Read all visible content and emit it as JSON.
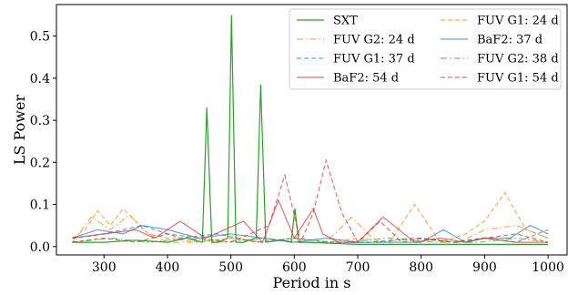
{
  "chart_data": {
    "type": "line",
    "title": "",
    "xlabel": "Period in s",
    "ylabel": "LS Power",
    "xlim": [
      225,
      1030
    ],
    "ylim": [
      -0.02,
      0.575
    ],
    "xticks": [
      300,
      400,
      500,
      600,
      700,
      800,
      900,
      1000
    ],
    "yticks": [
      0.0,
      0.1,
      0.2,
      0.3,
      0.4,
      0.5
    ],
    "ytick_labels": [
      "0.0",
      "0.1",
      "0.2",
      "0.3",
      "0.4",
      "0.5"
    ],
    "grid": false,
    "legend_position": "top-right",
    "legend_columns": 2,
    "series": [
      {
        "name": "SXT",
        "color": "#2ca02c",
        "style": "solid",
        "x": [
          250,
          300,
          350,
          400,
          430,
          455,
          462,
          470,
          480,
          495,
          501,
          508,
          520,
          540,
          547,
          555,
          580,
          595,
          601,
          607,
          620,
          700,
          800,
          900,
          1000
        ],
        "y": [
          0.01,
          0.01,
          0.015,
          0.01,
          0.02,
          0.01,
          0.33,
          0.01,
          0.01,
          0.02,
          0.55,
          0.01,
          0.01,
          0.02,
          0.385,
          0.01,
          0.015,
          0.01,
          0.09,
          0.01,
          0.01,
          0.005,
          0.005,
          0.005,
          0.005
        ]
      },
      {
        "name": "FUV G1: 24 d",
        "color": "#ff7f0e",
        "style": "dashed",
        "x": [
          250,
          270,
          290,
          310,
          330,
          350,
          370,
          400,
          450,
          500,
          550,
          600,
          650,
          700,
          750,
          790,
          830,
          870,
          900,
          932,
          965,
          1000
        ],
        "y": [
          0.02,
          0.04,
          0.085,
          0.05,
          0.09,
          0.06,
          0.03,
          0.02,
          0.01,
          0.02,
          0.01,
          0.02,
          0.01,
          0.02,
          0.01,
          0.1,
          0.01,
          0.03,
          0.06,
          0.128,
          0.04,
          0.02
        ]
      },
      {
        "name": "FUV G2: 24 d",
        "color": "#ff7f0e",
        "style": "dashdot",
        "x": [
          250,
          280,
          310,
          340,
          370,
          400,
          450,
          500,
          550,
          600,
          650,
          690,
          730,
          800,
          860,
          900,
          950,
          1000
        ],
        "y": [
          0.01,
          0.07,
          0.04,
          0.075,
          0.03,
          0.01,
          0.01,
          0.02,
          0.01,
          0.02,
          0.01,
          0.07,
          0.01,
          0.02,
          0.01,
          0.04,
          0.05,
          0.02
        ]
      },
      {
        "name": "BaF2: 37 d",
        "color": "#1f77b4",
        "style": "solid",
        "x": [
          250,
          290,
          330,
          360,
          400,
          450,
          500,
          550,
          600,
          650,
          700,
          750,
          800,
          835,
          870,
          900,
          940,
          972,
          1000
        ],
        "y": [
          0.02,
          0.04,
          0.03,
          0.05,
          0.04,
          0.02,
          0.03,
          0.02,
          0.01,
          0.02,
          0.01,
          0.01,
          0.01,
          0.04,
          0.01,
          0.02,
          0.02,
          0.05,
          0.03
        ]
      },
      {
        "name": "FUV G1: 37 d",
        "color": "#1f77b4",
        "style": "dashed",
        "x": [
          250,
          300,
          360,
          420,
          480,
          540,
          600,
          660,
          720,
          790,
          850,
          900,
          950,
          1000
        ],
        "y": [
          0.02,
          0.03,
          0.05,
          0.02,
          0.03,
          0.01,
          0.02,
          0.01,
          0.01,
          0.02,
          0.01,
          0.02,
          0.01,
          0.04
        ]
      },
      {
        "name": "FUV G2: 38 d",
        "color": "#2ca02c",
        "style": "dashdot",
        "x": [
          250,
          310,
          370,
          430,
          490,
          550,
          610,
          680,
          750,
          820,
          890,
          950,
          1000
        ],
        "y": [
          0.01,
          0.02,
          0.01,
          0.02,
          0.01,
          0.02,
          0.01,
          0.01,
          0.02,
          0.01,
          0.01,
          0.02,
          0.01
        ]
      },
      {
        "name": "BaF2: 54 d",
        "color": "#d62728",
        "style": "solid",
        "x": [
          250,
          300,
          350,
          380,
          420,
          460,
          490,
          520,
          550,
          575,
          600,
          630,
          645,
          670,
          700,
          740,
          790,
          830,
          870,
          900,
          950,
          1000
        ],
        "y": [
          0.02,
          0.03,
          0.04,
          0.02,
          0.06,
          0.02,
          0.04,
          0.06,
          0.01,
          0.11,
          0.02,
          0.09,
          0.03,
          0.01,
          0.01,
          0.07,
          0.01,
          0.02,
          0.01,
          0.02,
          0.01,
          0.01
        ]
      },
      {
        "name": "FUV G1: 54 d",
        "color": "#d62728",
        "style": "dashed",
        "x": [
          250,
          300,
          350,
          400,
          450,
          500,
          530,
          560,
          585,
          610,
          630,
          650,
          675,
          700,
          735,
          770,
          800,
          850,
          900,
          950,
          1000
        ],
        "y": [
          0.01,
          0.02,
          0.01,
          0.03,
          0.02,
          0.01,
          0.03,
          0.05,
          0.17,
          0.01,
          0.08,
          0.205,
          0.08,
          0.01,
          0.06,
          0.01,
          0.02,
          0.01,
          0.02,
          0.03,
          0.01
        ]
      }
    ]
  }
}
